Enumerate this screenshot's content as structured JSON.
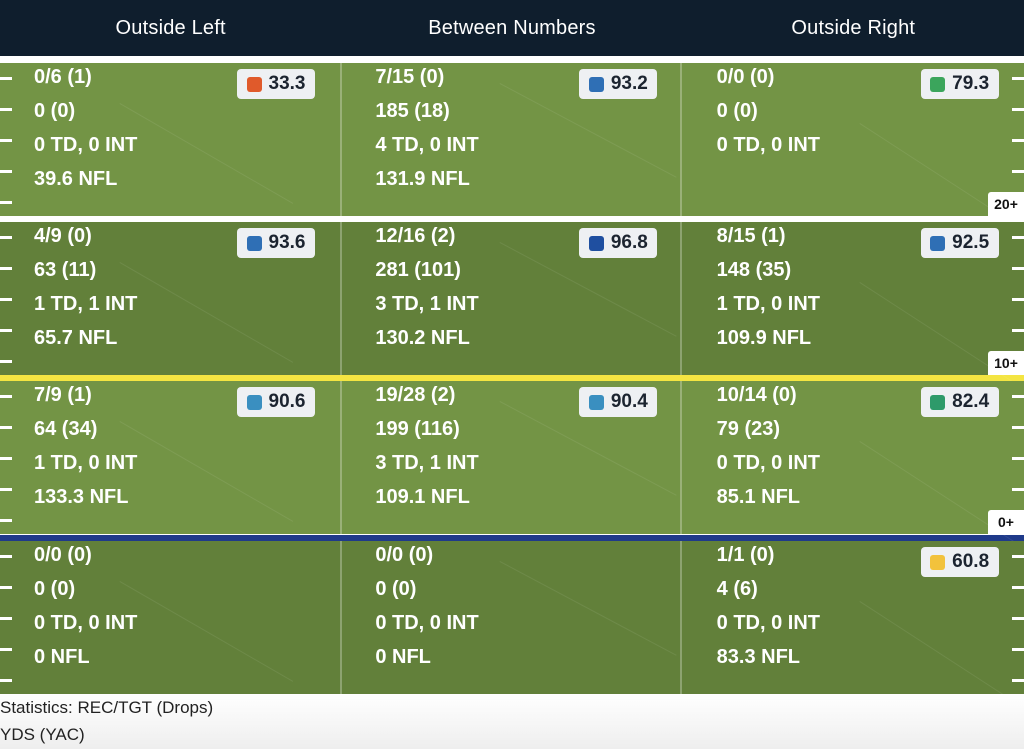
{
  "columns": [
    "Outside Left",
    "Between Numbers",
    "Outside Right"
  ],
  "rows": [
    {
      "zone": "20+",
      "cells": [
        {
          "lines": [
            "0/6 (1)",
            "0 (0)",
            "0 TD, 0 INT",
            "39.6 NFL"
          ],
          "grade": "33.3",
          "grade_color": "#e05a2b"
        },
        {
          "lines": [
            "7/15 (0)",
            "185 (18)",
            "4 TD, 0 INT",
            "131.9 NFL"
          ],
          "grade": "93.2",
          "grade_color": "#2f6fb5"
        },
        {
          "lines": [
            "0/0 (0)",
            "0 (0)",
            "0 TD, 0 INT",
            ""
          ],
          "grade": "79.3",
          "grade_color": "#3ba55c"
        }
      ]
    },
    {
      "zone": "10+",
      "cells": [
        {
          "lines": [
            "4/9 (0)",
            "63 (11)",
            "1 TD, 1 INT",
            "65.7 NFL"
          ],
          "grade": "93.6",
          "grade_color": "#2f6fb5"
        },
        {
          "lines": [
            "12/16 (2)",
            "281 (101)",
            "3 TD, 1 INT",
            "130.2 NFL"
          ],
          "grade": "96.8",
          "grade_color": "#1f4fa0"
        },
        {
          "lines": [
            "8/15 (1)",
            "148 (35)",
            "1 TD, 0 INT",
            "109.9 NFL"
          ],
          "grade": "92.5",
          "grade_color": "#2f6fb5"
        }
      ]
    },
    {
      "zone": "0+",
      "cells": [
        {
          "lines": [
            "7/9 (1)",
            "64 (34)",
            "1 TD, 0 INT",
            "133.3 NFL"
          ],
          "grade": "90.6",
          "grade_color": "#3a8fc0"
        },
        {
          "lines": [
            "19/28 (2)",
            "199 (116)",
            "3 TD, 1 INT",
            "109.1 NFL"
          ],
          "grade": "90.4",
          "grade_color": "#3a8fc0"
        },
        {
          "lines": [
            "10/14 (0)",
            "79 (23)",
            "0 TD, 0 INT",
            "85.1 NFL"
          ],
          "grade": "82.4",
          "grade_color": "#2e9a6a"
        }
      ]
    },
    {
      "zone": "",
      "cells": [
        {
          "lines": [
            "0/0 (0)",
            "0 (0)",
            "0 TD, 0 INT",
            "0 NFL"
          ],
          "grade": "",
          "grade_color": ""
        },
        {
          "lines": [
            "0/0 (0)",
            "0 (0)",
            "0 TD, 0 INT",
            "0 NFL"
          ],
          "grade": "",
          "grade_color": ""
        },
        {
          "lines": [
            "1/1 (0)",
            "4 (6)",
            "0 TD, 0 INT",
            "83.3 NFL"
          ],
          "grade": "60.8",
          "grade_color": "#f2c23c"
        }
      ]
    }
  ],
  "legend": [
    "Statistics: REC/TGT (Drops)",
    "YDS (YAC)"
  ],
  "colors": {
    "header_bg": "#0f1e2d",
    "field_light": "#739445",
    "field_dark": "#62803a",
    "line_white": "#ffffff",
    "line_yellow": "#f4e542",
    "line_blue": "#1f3a8a"
  }
}
